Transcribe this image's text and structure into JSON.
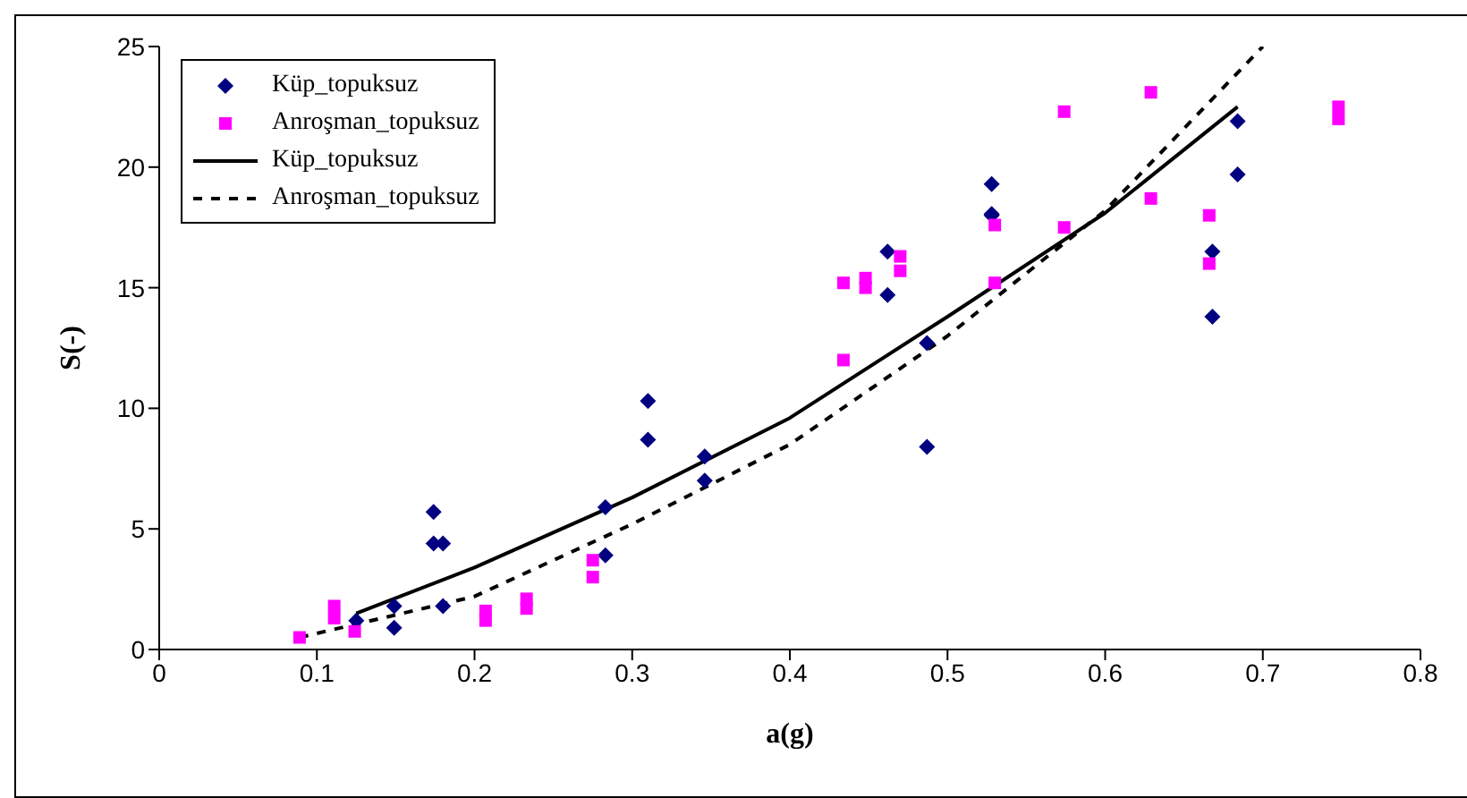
{
  "chart_data": {
    "type": "scatter",
    "xlabel": "a(g)",
    "ylabel": "S(-)",
    "xlim": [
      0,
      0.8
    ],
    "xticks": [
      0,
      0.1,
      0.2,
      0.3,
      0.4,
      0.5,
      0.6,
      0.7,
      0.8
    ],
    "ylim": [
      0,
      25
    ],
    "yticks": [
      0,
      5,
      10,
      15,
      20,
      25
    ],
    "grid": false,
    "legend": "top left",
    "series": [
      {
        "name": "Küp_topuksuz",
        "marker": "diamond",
        "color": "#000080",
        "x": [
          0.125,
          0.149,
          0.149,
          0.174,
          0.174,
          0.18,
          0.18,
          0.283,
          0.283,
          0.31,
          0.31,
          0.346,
          0.346,
          0.462,
          0.462,
          0.487,
          0.487,
          0.528,
          0.528,
          0.528,
          0.668,
          0.668,
          0.684,
          0.684
        ],
        "values": [
          1.2,
          1.8,
          0.9,
          5.7,
          4.4,
          4.4,
          1.8,
          5.9,
          3.9,
          10.3,
          8.7,
          8.0,
          7.0,
          16.5,
          14.7,
          12.7,
          8.4,
          18.0,
          19.3,
          18.05,
          16.5,
          13.8,
          21.9,
          19.7
        ]
      },
      {
        "name": "Anroşman_topuksuz",
        "marker": "square",
        "color": "#ff00ff",
        "x": [
          0.089,
          0.111,
          0.111,
          0.124,
          0.207,
          0.207,
          0.233,
          0.233,
          0.275,
          0.275,
          0.434,
          0.434,
          0.448,
          0.448,
          0.47,
          0.47,
          0.53,
          0.53,
          0.574,
          0.574,
          0.629,
          0.629,
          0.666,
          0.666,
          0.748,
          0.748
        ],
        "values": [
          0.5,
          1.3,
          1.8,
          0.75,
          1.2,
          1.6,
          1.7,
          2.1,
          3.7,
          3.0,
          15.2,
          12.0,
          15.4,
          15.0,
          16.3,
          15.7,
          17.6,
          15.2,
          22.3,
          17.5,
          23.1,
          18.7,
          18.0,
          16.0,
          22.5,
          22.0
        ]
      },
      {
        "name": "Küp_topuksuz",
        "type": "line",
        "line_style": "solid",
        "color": "#000000",
        "x": [
          0.125,
          0.2,
          0.3,
          0.4,
          0.5,
          0.6,
          0.684
        ],
        "values": [
          1.5,
          3.4,
          6.3,
          9.6,
          13.8,
          18.1,
          22.5
        ]
      },
      {
        "name": "Anroşman_topuksuz",
        "type": "line",
        "line_style": "dashed",
        "color": "#000000",
        "x": [
          0.089,
          0.2,
          0.3,
          0.4,
          0.5,
          0.6,
          0.7
        ],
        "values": [
          0.5,
          2.2,
          5.2,
          8.5,
          13.0,
          18.2,
          25
        ]
      }
    ]
  }
}
